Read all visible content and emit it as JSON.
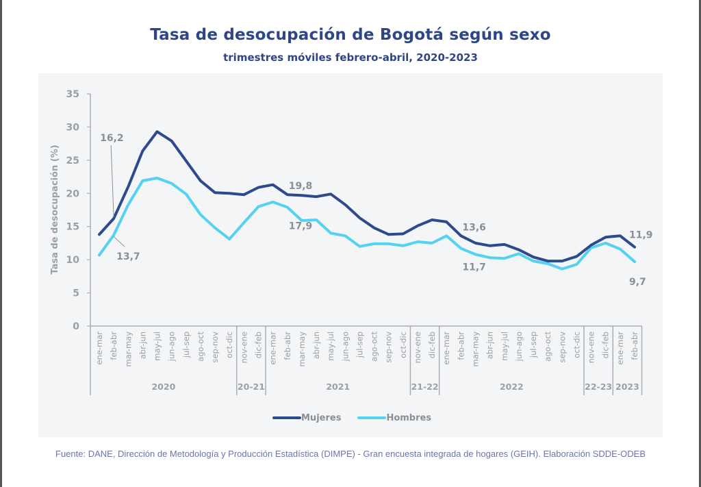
{
  "chart_data": {
    "type": "line",
    "title": "Tasa de desocupación de Bogotá según sexo",
    "subtitle": "trimestres móviles febrero-abril, 2020-2023",
    "ylabel": "Tasa de desocupación (%)",
    "xlabel": "",
    "ylim": [
      0,
      35
    ],
    "yticks": [
      "0",
      "5",
      "10",
      "15",
      "20",
      "25",
      "30",
      "35"
    ],
    "grid": false,
    "legend_position": "bottom-center",
    "categories": [
      "ene-mar",
      "feb-abr",
      "mar-may",
      "abr-jun",
      "may-jul",
      "jun-ago",
      "jul-sep",
      "ago-oct",
      "sep-nov",
      "oct-dic",
      "nov-ene",
      "dic-feb",
      "ene-mar",
      "feb-abr",
      "mar-may",
      "abr-jun",
      "may-jul",
      "jun-ago",
      "jul-sep",
      "ago-oct",
      "sep-nov",
      "oct-dic",
      "nov-ene",
      "dic-feb",
      "ene-mar",
      "feb-abr",
      "mar-may",
      "abr-jun",
      "may-jul",
      "jun-ago",
      "jul-sep",
      "ago-oct",
      "sep-nov",
      "oct-dic",
      "nov-ene",
      "dic-feb",
      "ene-mar",
      "feb-abr"
    ],
    "groups": [
      {
        "label": "2020",
        "count": 10
      },
      {
        "label": "20-21",
        "count": 2
      },
      {
        "label": "2021",
        "count": 10
      },
      {
        "label": "21-22",
        "count": 2
      },
      {
        "label": "2022",
        "count": 10
      },
      {
        "label": "22-23",
        "count": 2
      },
      {
        "label": "2023",
        "count": 2
      }
    ],
    "series": [
      {
        "name": "Mujeres",
        "color": "#2e4a8e",
        "values": [
          13.8,
          16.2,
          21.0,
          26.4,
          29.3,
          27.9,
          24.9,
          21.9,
          20.1,
          20.0,
          19.8,
          20.9,
          21.3,
          19.8,
          19.7,
          19.5,
          19.9,
          18.3,
          16.3,
          14.8,
          13.8,
          13.9,
          15.1,
          16.0,
          15.7,
          13.6,
          12.5,
          12.1,
          12.3,
          11.5,
          10.4,
          9.8,
          9.8,
          10.5,
          12.2,
          13.4,
          13.6,
          11.9
        ]
      },
      {
        "name": "Hombres",
        "color": "#55d1f2",
        "values": [
          10.7,
          13.7,
          18.3,
          21.9,
          22.3,
          21.5,
          19.9,
          16.8,
          14.8,
          13.1,
          15.6,
          18.0,
          18.7,
          17.9,
          15.9,
          16.0,
          14.0,
          13.6,
          12.0,
          12.4,
          12.4,
          12.1,
          12.7,
          12.5,
          13.6,
          11.7,
          10.8,
          10.3,
          10.2,
          10.9,
          9.8,
          9.4,
          8.6,
          9.3,
          11.8,
          12.5,
          11.6,
          9.7
        ]
      }
    ],
    "annotations": [
      {
        "text": "16,2",
        "series": "Mujeres",
        "index": 1
      },
      {
        "text": "13,7",
        "series": "Hombres",
        "index": 1
      },
      {
        "text": "19,8",
        "series": "Mujeres",
        "index": 13
      },
      {
        "text": "17,9",
        "series": "Hombres",
        "index": 13
      },
      {
        "text": "13,6",
        "series": "Mujeres",
        "index": 25
      },
      {
        "text": "11,7",
        "series": "Hombres",
        "index": 25
      },
      {
        "text": "11,9",
        "series": "Mujeres",
        "index": 37
      },
      {
        "text": "9,7",
        "series": "Hombres",
        "index": 37
      }
    ]
  },
  "source": "Fuente: DANE, Dirección de Metodología y Producción Estadística (DIMPE) - Gran encuesta integrada de hogares (GEIH). Elaboración SDDE-ODEB"
}
